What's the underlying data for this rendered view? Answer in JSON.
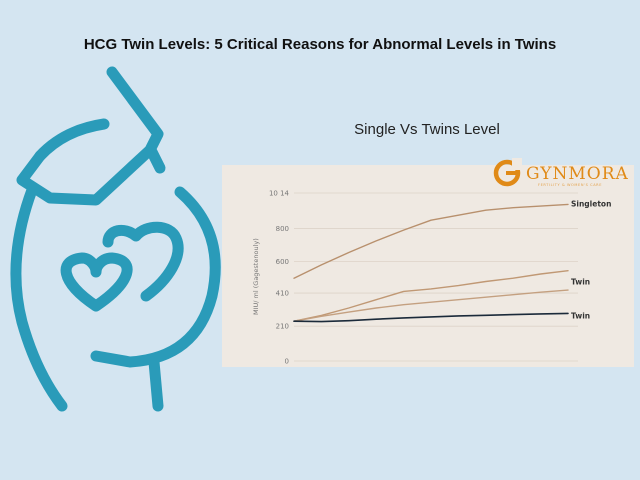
{
  "page": {
    "headline": "HCG Twin Levels: 5 Critical Reasons for Abnormal Levels in Twins",
    "chart_heading": "Single Vs Twins Level",
    "brand": {
      "name": "GYNMORA",
      "tagline": "FERTILITY & WOMEN'S CARE"
    }
  },
  "colors": {
    "background": "#d4e5f1",
    "illustration": "#2a9bb9",
    "card": "#efe9e2",
    "singleton": "#b8906d",
    "twin_upper": "#c09874",
    "twin_mid": "#c4a080",
    "twin_dark": "#1b2a3a",
    "brand": "#e08a17"
  },
  "illustration": {
    "icon": "pregnant-belly-with-hearts-icon"
  },
  "chart_data": {
    "type": "line",
    "title": "",
    "subtitle": "",
    "xlabel": "",
    "ylabel": "MIU/ ml (Gagestenouly)",
    "y_tick_labels": [
      "0",
      "210",
      "410",
      "600",
      "800",
      "10 14"
    ],
    "y_tick_values": [
      0,
      210,
      410,
      600,
      800,
      1014
    ],
    "ylim": [
      0,
      1014
    ],
    "x": [
      0,
      1,
      2,
      3,
      4,
      5,
      6,
      7,
      8,
      9,
      10
    ],
    "grid": true,
    "legend": "inline-right",
    "series": [
      {
        "name": "Singleton",
        "color": "#b8906d",
        "values": [
          500,
          580,
          655,
          725,
          790,
          850,
          880,
          910,
          925,
          935,
          945
        ]
      },
      {
        "name": "Twin",
        "color": "#c09874",
        "values": [
          240,
          275,
          320,
          370,
          420,
          435,
          455,
          480,
          500,
          525,
          545
        ]
      },
      {
        "name": "",
        "color": "#c4a080",
        "values": [
          240,
          270,
          295,
          320,
          340,
          355,
          370,
          385,
          400,
          415,
          428
        ]
      },
      {
        "name": "Twin",
        "color": "#1b2a3a",
        "values": [
          240,
          238,
          243,
          252,
          260,
          266,
          272,
          276,
          280,
          284,
          287
        ]
      }
    ]
  }
}
